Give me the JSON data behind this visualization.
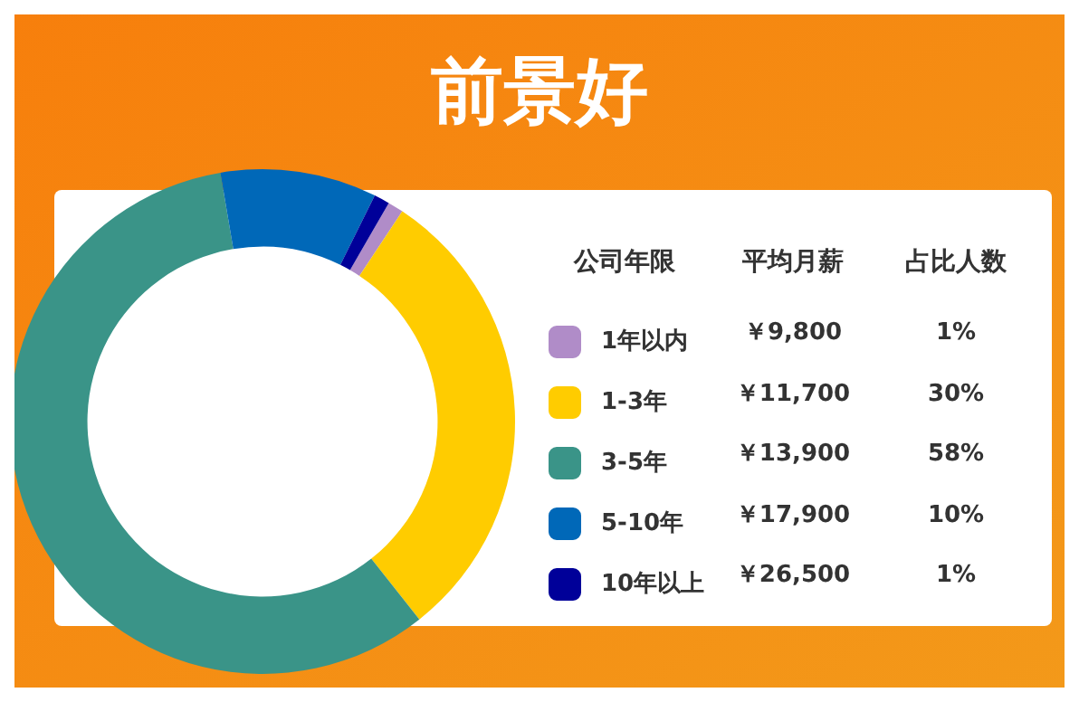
{
  "chart_data": {
    "type": "donut",
    "title": "前景好",
    "legend_title": "公司年限",
    "categories": [
      "1年以内",
      "1-3年",
      "3-5年",
      "5-10年",
      "10年以上"
    ],
    "values": [
      1,
      30,
      58,
      10,
      1
    ],
    "colors": [
      "#b08cc8",
      "#ffcc00",
      "#3a9488",
      "#0068b8",
      "#000099"
    ],
    "value_labels": [
      "1%",
      "30%",
      "58%",
      "10%",
      "1%"
    ],
    "annotations": [
      "平均月薪",
      "占比人数",
      "￥9,800",
      "￥11,700",
      "￥13,900",
      "￥17,900",
      "￥26,500"
    ],
    "legend": "right"
  }
}
